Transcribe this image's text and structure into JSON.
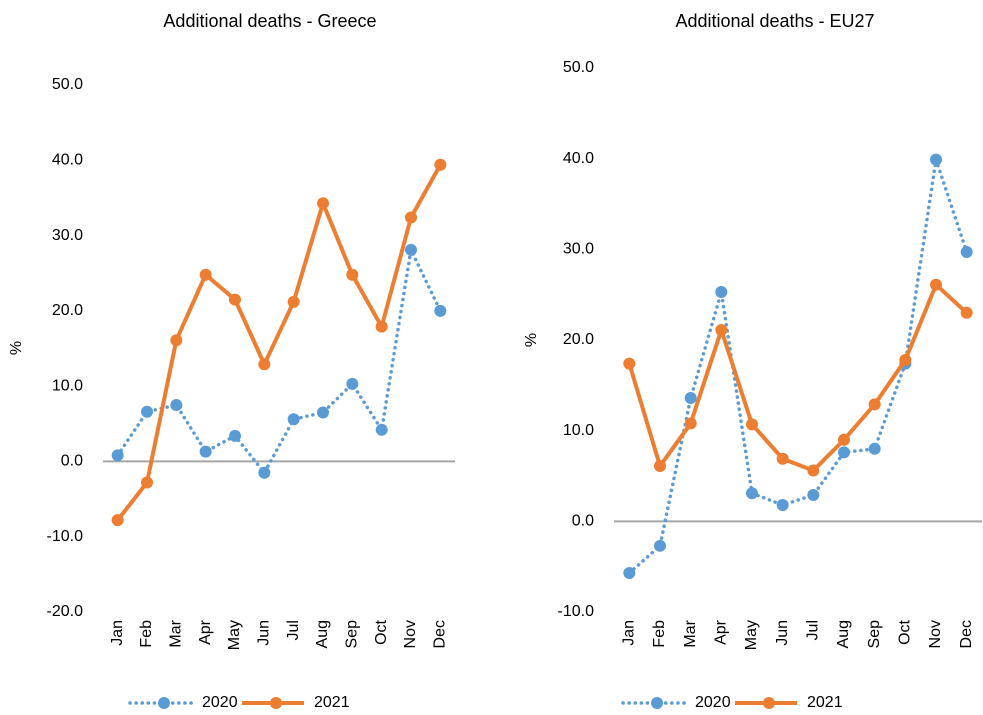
{
  "chart_data": [
    {
      "type": "line",
      "title": "Additional deaths - Greece",
      "y_label": "%",
      "categories": [
        "Jan",
        "Feb",
        "Mar",
        "Apr",
        "May",
        "Jun",
        "Jul",
        "Aug",
        "Sep",
        "Oct",
        "Nov",
        "Dec"
      ],
      "series": [
        {
          "name": "2020",
          "color": "#5b9bd5",
          "style": "dotted",
          "values": [
            0.8,
            6.6,
            7.5,
            1.3,
            3.4,
            -1.5,
            5.6,
            6.5,
            10.3,
            4.2,
            28.1,
            20.0
          ]
        },
        {
          "name": "2021",
          "color": "#ed7d31",
          "style": "solid",
          "values": [
            -7.8,
            -2.8,
            16.1,
            24.8,
            21.5,
            12.9,
            21.2,
            34.3,
            24.8,
            17.9,
            32.4,
            39.4
          ]
        }
      ],
      "ylim": [
        -20,
        50
      ],
      "yticks": [
        {
          "value": -20,
          "label": "-20.0"
        },
        {
          "value": -10,
          "label": "-10.0"
        },
        {
          "value": 0,
          "label": "0.0"
        },
        {
          "value": 10,
          "label": "10.0"
        },
        {
          "value": 20,
          "label": "20.0"
        },
        {
          "value": 30,
          "label": "30.0"
        },
        {
          "value": 40,
          "label": "40.0"
        },
        {
          "value": 50,
          "label": "50.0"
        }
      ],
      "grid": false,
      "legend": "bottom"
    },
    {
      "type": "line",
      "title": "Additional deaths - EU27",
      "y_label": "%",
      "categories": [
        "Jan",
        "Feb",
        "Mar",
        "Apr",
        "May",
        "Jun",
        "Jul",
        "Aug",
        "Sep",
        "Oct",
        "Nov",
        "Dec"
      ],
      "series": [
        {
          "name": "2020",
          "color": "#5b9bd5",
          "style": "dotted",
          "values": [
            -5.7,
            -2.7,
            13.6,
            25.3,
            3.1,
            1.8,
            2.9,
            7.6,
            8.0,
            17.4,
            39.9,
            29.7
          ]
        },
        {
          "name": "2021",
          "color": "#ed7d31",
          "style": "solid",
          "values": [
            17.4,
            6.1,
            10.8,
            21.1,
            10.7,
            6.9,
            5.6,
            9.0,
            12.9,
            17.8,
            26.1,
            23.0
          ]
        }
      ],
      "ylim": [
        -10,
        50
      ],
      "yticks": [
        {
          "value": -10,
          "label": "-10.0"
        },
        {
          "value": 0,
          "label": "0.0"
        },
        {
          "value": 10,
          "label": "10.0"
        },
        {
          "value": 20,
          "label": "20.0"
        },
        {
          "value": 30,
          "label": "30.0"
        },
        {
          "value": 40,
          "label": "40.0"
        },
        {
          "value": 50,
          "label": "50.0"
        }
      ],
      "grid": false,
      "legend": "bottom"
    }
  ]
}
